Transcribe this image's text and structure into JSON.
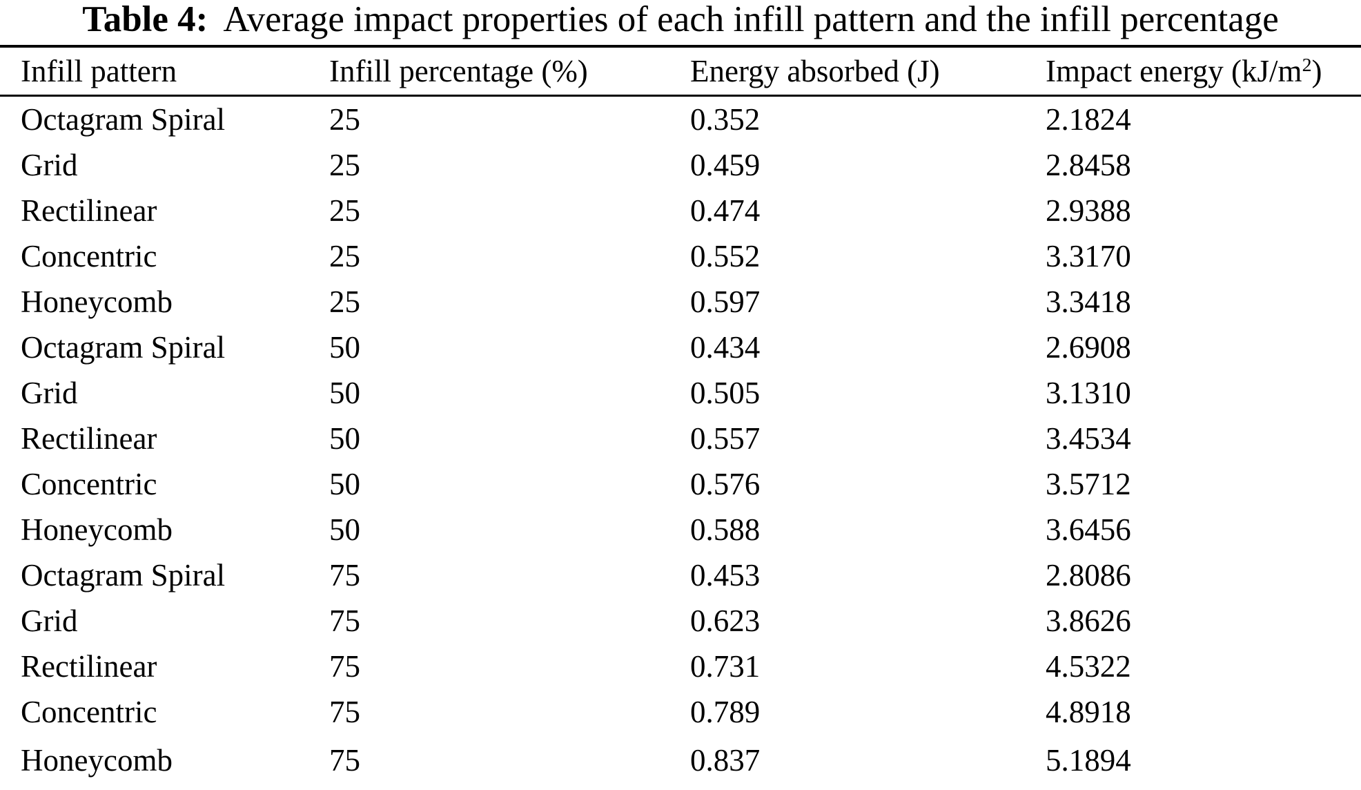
{
  "caption": {
    "label": "Table 4:",
    "text": "Average impact properties of each infill pattern and the infill percentage"
  },
  "colors": {
    "background": "#ffffff",
    "text": "#000000",
    "rule": "#000000"
  },
  "table": {
    "column_keys": [
      "pattern",
      "percentage",
      "energy_absorbed",
      "impact_energy"
    ],
    "columns": [
      {
        "label": "Infill pattern"
      },
      {
        "label": "Infill percentage (%)"
      },
      {
        "label": "Energy absorbed (J)"
      },
      {
        "label_prefix": "Impact energy (kJ/m",
        "label_sup": "2",
        "label_suffix": ")"
      }
    ],
    "rows": [
      {
        "pattern": "Octagram Spiral",
        "percentage": "25",
        "energy_absorbed": "0.352",
        "impact_energy": "2.1824"
      },
      {
        "pattern": "Grid",
        "percentage": "25",
        "energy_absorbed": "0.459",
        "impact_energy": "2.8458"
      },
      {
        "pattern": "Rectilinear",
        "percentage": "25",
        "energy_absorbed": "0.474",
        "impact_energy": "2.9388"
      },
      {
        "pattern": "Concentric",
        "percentage": "25",
        "energy_absorbed": "0.552",
        "impact_energy": "3.3170"
      },
      {
        "pattern": "Honeycomb",
        "percentage": "25",
        "energy_absorbed": "0.597",
        "impact_energy": "3.3418"
      },
      {
        "pattern": "Octagram Spiral",
        "percentage": "50",
        "energy_absorbed": "0.434",
        "impact_energy": "2.6908"
      },
      {
        "pattern": "Grid",
        "percentage": "50",
        "energy_absorbed": "0.505",
        "impact_energy": "3.1310"
      },
      {
        "pattern": "Rectilinear",
        "percentage": "50",
        "energy_absorbed": "0.557",
        "impact_energy": "3.4534"
      },
      {
        "pattern": "Concentric",
        "percentage": "50",
        "energy_absorbed": "0.576",
        "impact_energy": "3.5712"
      },
      {
        "pattern": "Honeycomb",
        "percentage": "50",
        "energy_absorbed": "0.588",
        "impact_energy": "3.6456"
      },
      {
        "pattern": "Octagram Spiral",
        "percentage": "75",
        "energy_absorbed": "0.453",
        "impact_energy": "2.8086"
      },
      {
        "pattern": "Grid",
        "percentage": "75",
        "energy_absorbed": "0.623",
        "impact_energy": "3.8626"
      },
      {
        "pattern": "Rectilinear",
        "percentage": "75",
        "energy_absorbed": "0.731",
        "impact_energy": "4.5322"
      },
      {
        "pattern": "Concentric",
        "percentage": "75",
        "energy_absorbed": "0.789",
        "impact_energy": "4.8918"
      },
      {
        "pattern": "Honeycomb",
        "percentage": "75",
        "energy_absorbed": "0.837",
        "impact_energy": "5.1894"
      }
    ]
  }
}
